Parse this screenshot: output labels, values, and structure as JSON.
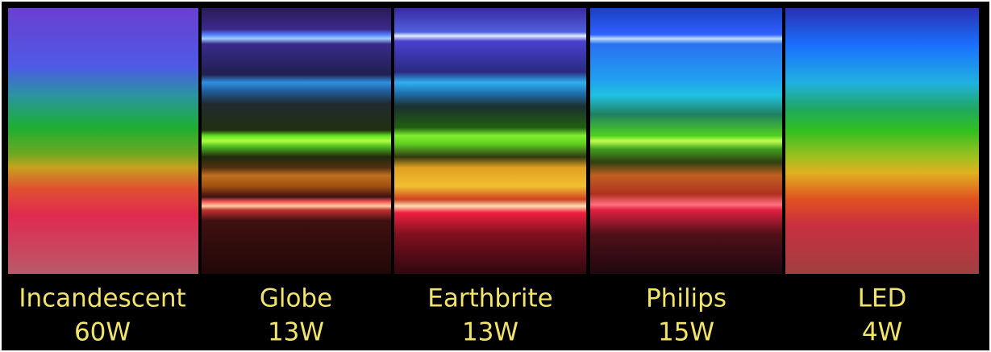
{
  "panels": [
    {
      "name": "Incandescent",
      "wattage": "60W"
    },
    {
      "name": "Globe",
      "wattage": "13W"
    },
    {
      "name": "Earthbrite",
      "wattage": "13W"
    },
    {
      "name": "Philips",
      "wattage": "15W"
    },
    {
      "name": "LED",
      "wattage": "4W"
    }
  ]
}
